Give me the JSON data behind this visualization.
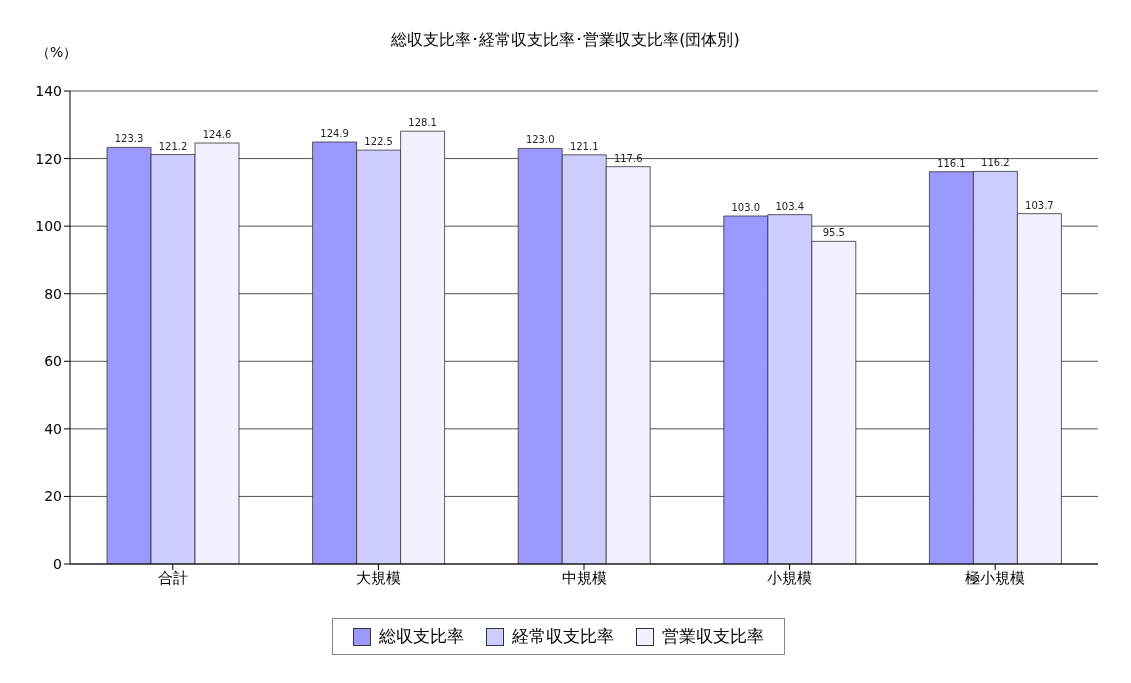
{
  "chart_data": {
    "type": "bar",
    "title": "総収支比率･経常収支比率･営業収支比率(団体別)",
    "ylabel": "（%）",
    "categories": [
      "合計",
      "大規模",
      "中規模",
      "小規模",
      "極小規模"
    ],
    "series": [
      {
        "name": "総収支比率",
        "color": "#9999ff",
        "values": [
          123.3,
          124.9,
          123.0,
          103.0,
          116.1
        ],
        "value_labels": [
          "123.3",
          "124.9",
          "123.0",
          "103.0",
          "116.1"
        ]
      },
      {
        "name": "経常収支比率",
        "color": "#ccccff",
        "values": [
          121.2,
          122.5,
          121.1,
          103.4,
          116.2
        ],
        "value_labels": [
          "121.2",
          "122.5",
          "121.1",
          "103.4",
          "116.2"
        ]
      },
      {
        "name": "営業収支比率",
        "color": "#f0f0ff",
        "values": [
          124.6,
          128.1,
          117.6,
          95.5,
          103.7
        ],
        "value_labels": [
          "124.6",
          "128.1",
          "117.6",
          "95.5",
          "103.7"
        ]
      }
    ],
    "ylim": [
      0,
      140
    ],
    "yticks": [
      0,
      20,
      40,
      60,
      80,
      100,
      120,
      140
    ],
    "grid": "y",
    "legend": "bottom"
  }
}
